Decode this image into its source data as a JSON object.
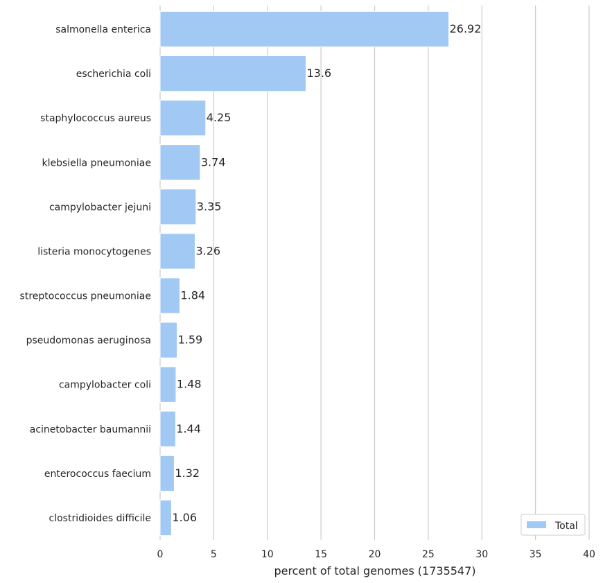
{
  "chart_data": {
    "type": "bar",
    "orientation": "horizontal",
    "categories": [
      "salmonella enterica",
      "escherichia coli",
      "staphylococcus aureus",
      "klebsiella pneumoniae",
      "campylobacter jejuni",
      "listeria monocytogenes",
      "streptococcus pneumoniae",
      "pseudomonas aeruginosa",
      "campylobacter coli",
      "acinetobacter baumannii",
      "enterococcus faecium",
      "clostridioides difficile"
    ],
    "series": [
      {
        "name": "Total",
        "values": [
          26.92,
          13.6,
          4.25,
          3.74,
          3.35,
          3.26,
          1.84,
          1.59,
          1.48,
          1.44,
          1.32,
          1.06
        ],
        "labels": [
          "26.92",
          "13.6",
          "4.25",
          "3.74",
          "3.35",
          "3.26",
          "1.84",
          "1.59",
          "1.48",
          "1.44",
          "1.32",
          "1.06"
        ],
        "color": "#a1c9f4"
      }
    ],
    "xlabel": "percent of total genomes (1735547)",
    "ylabel": "",
    "xlim": [
      0,
      40
    ],
    "xticks": [
      "0",
      "5",
      "10",
      "15",
      "20",
      "25",
      "30",
      "35",
      "40"
    ],
    "grid": "vertical",
    "legend_position": "bottom-right",
    "legend_label": "Total"
  }
}
